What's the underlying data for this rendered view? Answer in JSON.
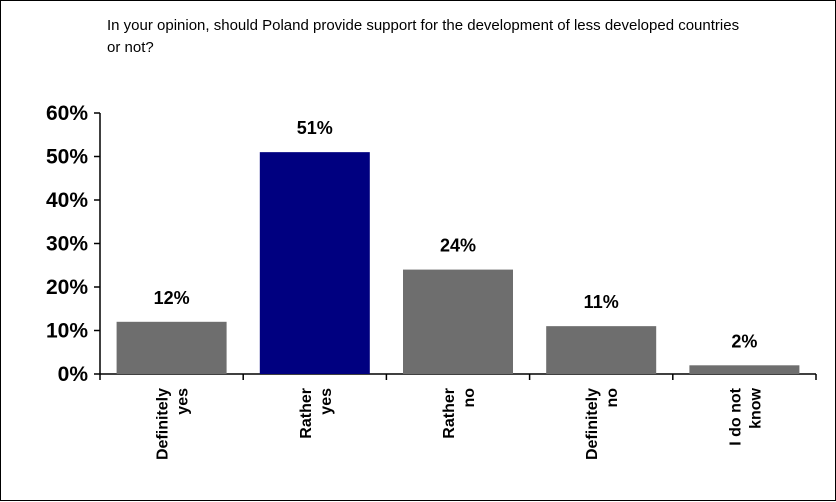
{
  "chart_data": {
    "type": "bar",
    "title": "In your opinion, should Poland provide support for the development of less developed countries or not?",
    "categories": [
      [
        "Definitely",
        "yes"
      ],
      [
        "Rather",
        "yes"
      ],
      [
        "Rather",
        "no"
      ],
      [
        "Definitely",
        "no"
      ],
      [
        "I do not",
        "know"
      ]
    ],
    "values": [
      12,
      51,
      24,
      11,
      2
    ],
    "data_labels": [
      "12%",
      "51%",
      "24%",
      "11%",
      "2%"
    ],
    "bar_colors": [
      "#6e6e6e",
      "#000080",
      "#6e6e6e",
      "#6e6e6e",
      "#6e6e6e"
    ],
    "y_ticks": [
      "0%",
      "10%",
      "20%",
      "30%",
      "40%",
      "50%",
      "60%"
    ],
    "ylim": [
      0,
      60
    ],
    "xlabel": "",
    "ylabel": "",
    "grid": false,
    "legend": "none"
  }
}
